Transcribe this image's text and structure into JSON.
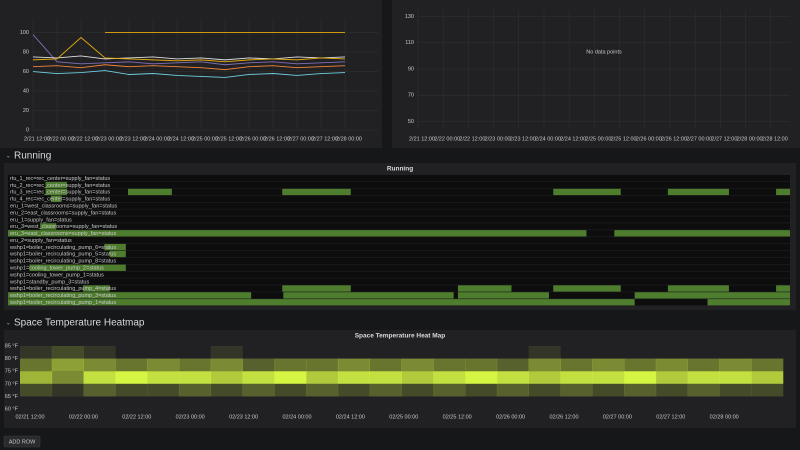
{
  "chart_data": [
    {
      "type": "line",
      "ylim": [
        0,
        115
      ],
      "yticks": [
        0,
        20,
        40,
        60,
        80,
        100
      ],
      "x": [
        "2/21 12:00",
        "2/22 00:00",
        "2/22 12:00",
        "2/23 00:00",
        "2/23 12:00",
        "2/24 00:00",
        "2/24 12:00",
        "2/25 00:00",
        "2/25 12:00",
        "2/26 00:00",
        "2/26 12:00",
        "2/27 00:00",
        "2/27 12:00",
        "2/28 00:00"
      ],
      "grid": true,
      "series": [
        {
          "color": "#806eb7",
          "values": [
            98,
            70,
            68,
            69,
            70,
            68,
            69,
            70,
            67,
            69,
            70,
            68,
            69,
            70
          ]
        },
        {
          "color": "#6ed0e0",
          "values": [
            60,
            58,
            59,
            61,
            57,
            58,
            56,
            55,
            54,
            57,
            58,
            56,
            58,
            59
          ]
        },
        {
          "color": "#e0e0e0",
          "values": [
            75,
            74,
            76,
            73,
            74,
            75,
            73,
            74,
            72,
            74,
            73,
            75,
            74,
            75
          ]
        },
        {
          "color": "#ef843c",
          "values": [
            65,
            66,
            64,
            67,
            65,
            66,
            65,
            64,
            62,
            65,
            66,
            64,
            65,
            66
          ]
        },
        {
          "color": "#e5ac0e",
          "values": [
            72,
            73,
            95,
            74,
            73,
            72,
            71,
            72,
            70,
            72,
            73,
            72,
            74,
            73
          ]
        },
        {
          "color": "#e5ac0e",
          "values": [
            null,
            null,
            null,
            100,
            100,
            100,
            100,
            100,
            100,
            100,
            100,
            100,
            100,
            100
          ]
        }
      ]
    },
    {
      "type": "line",
      "ylim": [
        45,
        135
      ],
      "yticks": [
        50,
        70,
        90,
        110,
        130
      ],
      "x": [
        "2/21 12:00",
        "2/22 00:00",
        "2/22 12:00",
        "2/23 00:00",
        "2/23 12:00",
        "2/24 00:00",
        "2/24 12:00",
        "2/25 00:00",
        "2/25 12:00",
        "2/26 00:00",
        "2/26 12:00",
        "2/27 00:00",
        "2/27 12:00",
        "2/28 00:00",
        "2/28 12:00"
      ],
      "grid": true,
      "message": "No data points",
      "series": []
    },
    {
      "type": "timeline",
      "title": "Running",
      "xlim": [
        0,
        7.3
      ],
      "color": "#4e7d2e",
      "rows": [
        {
          "name": "rtu_1_rec=rec_center=supply_fan=status",
          "segments": []
        },
        {
          "name": "rtu_2_rec=rec_center=supply_fan=status",
          "segments": [
            [
              0.35,
              0.55
            ]
          ]
        },
        {
          "name": "rtu_3_rec=rec_center=supply_fan=status",
          "segments": [
            [
              0.35,
              0.55
            ],
            [
              1.12,
              1.53
            ],
            [
              2.56,
              3.2
            ],
            [
              5.09,
              5.72
            ],
            [
              6.16,
              6.73
            ],
            [
              7.17,
              7.3
            ]
          ]
        },
        {
          "name": "rtu_4_rec=rec_center=supply_fan=status",
          "segments": [
            [
              0.4,
              0.5
            ]
          ]
        },
        {
          "name": "eru_1=west_classrooms=supply_fan=status",
          "segments": []
        },
        {
          "name": "eru_2=east_classrooms=supply_fan=status",
          "segments": []
        },
        {
          "name": "eru_1=supply_fan=status",
          "segments": []
        },
        {
          "name": "eru_3=west_classrooms=supply_fan=status",
          "segments": [
            [
              0.3,
              0.45
            ]
          ]
        },
        {
          "name": "eru_3=east_classrooms=supply_fan=status",
          "segments": [
            [
              0,
              5.4
            ],
            [
              5.66,
              7.3
            ]
          ]
        },
        {
          "name": "eru_2=supply_fan=status",
          "segments": []
        },
        {
          "name": "wshp1=boiler_recirculating_pump_6=status",
          "segments": [
            [
              0.9,
              1.1
            ]
          ]
        },
        {
          "name": "wshp1=boiler_recirculating_pump_5=status",
          "segments": [
            [
              0.95,
              1.1
            ]
          ]
        },
        {
          "name": "wshp1=boiler_recirculating_pump_8=status",
          "segments": []
        },
        {
          "name": "wshp1=cooling_tower_pump_2=status",
          "segments": [
            [
              0.2,
              1.1
            ]
          ]
        },
        {
          "name": "wshp1=cooling_tower_pump_1=status",
          "segments": []
        },
        {
          "name": "wshp1=standby_pump_3=status",
          "segments": []
        },
        {
          "name": "wshp1=boiler_recirculating_pump_4=status",
          "segments": [
            [
              0.7,
              0.95
            ],
            [
              2.56,
              3.2
            ],
            [
              4.2,
              4.7
            ],
            [
              5.09,
              5.72
            ],
            [
              6.16,
              6.73
            ],
            [
              7.17,
              7.3
            ]
          ]
        },
        {
          "name": "wshp1=boiler_recirculating_pump_3=status",
          "segments": [
            [
              0,
              2.27
            ],
            [
              2.57,
              4.16
            ],
            [
              4.2,
              5.05
            ],
            [
              5.85,
              7.3
            ]
          ]
        },
        {
          "name": "wshp1=boiler_recirculating_pump_1=status",
          "segments": [
            [
              0,
              5.85
            ],
            [
              6.53,
              7.3
            ]
          ]
        }
      ]
    },
    {
      "type": "heatmap",
      "title": "Space Temperature Heat Map",
      "color": "#d4f542",
      "ylim": [
        60,
        85
      ],
      "yticks": [
        {
          "value": 85,
          "label": "85 °F"
        },
        {
          "value": 80,
          "label": "80 °F"
        },
        {
          "value": 75,
          "label": "75 °F"
        },
        {
          "value": 70,
          "label": "70 °F"
        },
        {
          "value": 65,
          "label": "65 °F"
        },
        {
          "value": 60,
          "label": "60 °F"
        }
      ],
      "xticks": [
        "02/21 12:00",
        "02/22 00:00",
        "02/22 12:00",
        "02/23 00:00",
        "02/23 12:00",
        "02/24 00:00",
        "02/24 12:00",
        "02/25 00:00",
        "02/25 12:00",
        "02/26 00:00",
        "02/26 12:00",
        "02/27 00:00",
        "02/27 12:00",
        "02/28 00:00"
      ],
      "bins": [
        60,
        65,
        70,
        75,
        80,
        85
      ],
      "values": [
        [
          0,
          2,
          7,
          4,
          1
        ],
        [
          0,
          1,
          5,
          6,
          2
        ],
        [
          0,
          3,
          9,
          5,
          1
        ],
        [
          0,
          2,
          10,
          4,
          0
        ],
        [
          0,
          2,
          9,
          5,
          0
        ],
        [
          0,
          3,
          9,
          4,
          0
        ],
        [
          0,
          2,
          8,
          5,
          1
        ],
        [
          0,
          3,
          9,
          3,
          0
        ],
        [
          0,
          2,
          10,
          4,
          0
        ],
        [
          0,
          3,
          8,
          4,
          0
        ],
        [
          0,
          2,
          9,
          5,
          0
        ],
        [
          0,
          3,
          9,
          4,
          0
        ],
        [
          0,
          2,
          8,
          5,
          0
        ],
        [
          0,
          3,
          9,
          4,
          0
        ],
        [
          0,
          2,
          10,
          4,
          0
        ],
        [
          0,
          3,
          9,
          3,
          0
        ],
        [
          0,
          2,
          8,
          5,
          1
        ],
        [
          0,
          3,
          9,
          4,
          0
        ],
        [
          0,
          2,
          9,
          5,
          0
        ],
        [
          0,
          3,
          10,
          4,
          0
        ],
        [
          0,
          2,
          8,
          5,
          0
        ],
        [
          0,
          3,
          9,
          4,
          0
        ],
        [
          0,
          2,
          9,
          5,
          0
        ],
        [
          0,
          2,
          8,
          4,
          0
        ]
      ]
    }
  ],
  "rows": [
    "Running",
    "Space Temperature Heatmap"
  ],
  "button": "ADD ROW"
}
